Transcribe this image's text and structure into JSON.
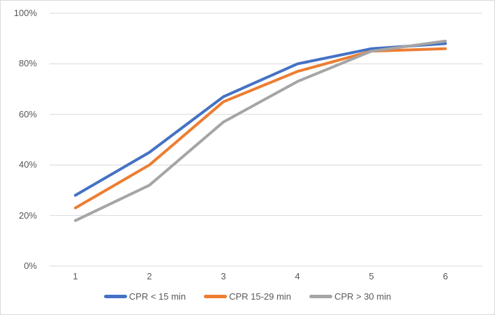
{
  "chart_data": {
    "type": "line",
    "title": "",
    "xlabel": "",
    "ylabel": "",
    "categories": [
      "1",
      "2",
      "3",
      "4",
      "5",
      "6"
    ],
    "series": [
      {
        "name": "CPR < 15 min",
        "color": "#4472C4",
        "values": [
          28,
          45,
          67,
          80,
          86,
          88
        ]
      },
      {
        "name": "CPR 15-29 min",
        "color": "#ED7D31",
        "values": [
          23,
          40,
          65,
          77,
          85,
          86
        ]
      },
      {
        "name": "CPR > 30 min",
        "color": "#A5A5A5",
        "values": [
          18,
          32,
          57,
          73,
          85,
          89
        ]
      }
    ],
    "ylim": [
      0,
      100
    ],
    "y_tick_step": 20,
    "y_tick_labels": [
      "0%",
      "20%",
      "40%",
      "60%",
      "80%",
      "100%"
    ],
    "grid": true,
    "legend_position": "bottom"
  },
  "colors": {
    "grid": "#d9d9d9",
    "axis_text": "#595959",
    "background": "#ffffff",
    "frame_border": "#d9d9d9"
  }
}
